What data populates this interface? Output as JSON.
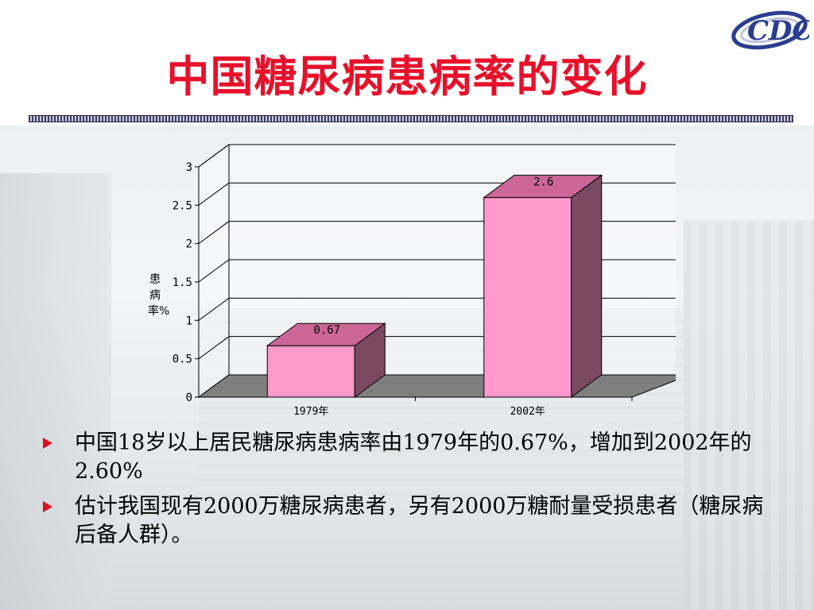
{
  "slide": {
    "title": "中国糖尿病患病率的变化",
    "logo_text": "CDC"
  },
  "chart_data": {
    "type": "bar",
    "categories": [
      "1979年",
      "2002年"
    ],
    "values": [
      0.67,
      2.6
    ],
    "value_labels": [
      "0.67",
      "2.6"
    ],
    "ylabel": "患病率%",
    "ylim": [
      0,
      3
    ],
    "yticks": [
      "0",
      "0.5",
      "1",
      "1.5",
      "2",
      "2.5",
      "3"
    ],
    "grid": true,
    "bar_color": "#ff99cc",
    "bar_top_color": "#cc6699",
    "bar_side_color": "#7a4a63",
    "floor_color": "#7f7f7f"
  },
  "bullets": [
    "中国18岁以上居民糖尿病患病率由1979年的0.67%，增加到2002年的2.60%",
    "估计我国现有2000万糖尿病患者，另有2000万糖耐量受损患者（糖尿病后备人群）。"
  ],
  "colors": {
    "title": "#e8102a",
    "bullet_marker": "#d81020"
  }
}
